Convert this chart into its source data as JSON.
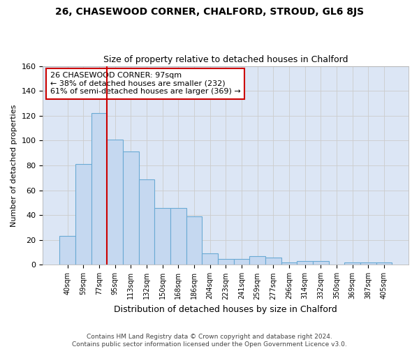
{
  "title": "26, CHASEWOOD CORNER, CHALFORD, STROUD, GL6 8JS",
  "subtitle": "Size of property relative to detached houses in Chalford",
  "xlabel": "Distribution of detached houses by size in Chalford",
  "ylabel": "Number of detached properties",
  "categories": [
    "40sqm",
    "59sqm",
    "77sqm",
    "95sqm",
    "113sqm",
    "132sqm",
    "150sqm",
    "168sqm",
    "186sqm",
    "204sqm",
    "223sqm",
    "241sqm",
    "259sqm",
    "277sqm",
    "296sqm",
    "314sqm",
    "332sqm",
    "350sqm",
    "369sqm",
    "387sqm",
    "405sqm"
  ],
  "values": [
    23,
    81,
    122,
    101,
    91,
    69,
    46,
    46,
    39,
    9,
    5,
    5,
    7,
    6,
    2,
    3,
    3,
    0,
    2,
    2,
    2
  ],
  "bar_color": "#c5d8f0",
  "bar_edge_color": "#6aaad4",
  "highlight_line_color": "#cc0000",
  "annotation_text": "26 CHASEWOOD CORNER: 97sqm\n← 38% of detached houses are smaller (232)\n61% of semi-detached houses are larger (369) →",
  "annotation_box_color": "#ffffff",
  "annotation_box_edge": "#cc0000",
  "ylim": [
    0,
    160
  ],
  "yticks": [
    0,
    20,
    40,
    60,
    80,
    100,
    120,
    140,
    160
  ],
  "grid_color": "#cccccc",
  "background_color": "#dce6f5",
  "fig_background": "#ffffff",
  "footer_line1": "Contains HM Land Registry data © Crown copyright and database right 2024.",
  "footer_line2": "Contains public sector information licensed under the Open Government Licence v3.0."
}
